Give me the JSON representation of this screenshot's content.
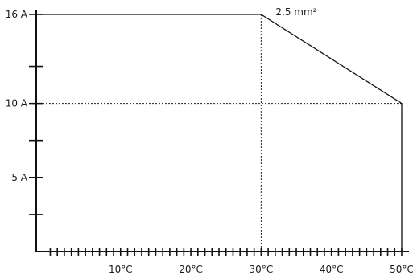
{
  "chart_data": {
    "type": "line",
    "title": "",
    "xlabel": "",
    "ylabel": "",
    "xlim": [
      -2,
      50
    ],
    "ylim": [
      0,
      16
    ],
    "x_ticks": [
      {
        "value": 10,
        "label": "10°C"
      },
      {
        "value": 20,
        "label": "20°C"
      },
      {
        "value": 30,
        "label": "30°C"
      },
      {
        "value": 40,
        "label": "40°C"
      },
      {
        "value": 50,
        "label": "50°C"
      }
    ],
    "x_minor_step": 1,
    "y_ticks": [
      {
        "value": 5,
        "label": "5 A"
      },
      {
        "value": 10,
        "label": "10 A"
      },
      {
        "value": 16,
        "label": "16 A"
      }
    ],
    "y_minor_ticks": [
      2.5,
      7.5,
      12.5
    ],
    "series": [
      {
        "name": "2,5 mm²",
        "x": [
          -2,
          30,
          50,
          50
        ],
        "y": [
          16,
          16,
          10,
          0
        ]
      }
    ],
    "guide_lines": [
      {
        "from": [
          30,
          16
        ],
        "to": [
          30,
          0
        ]
      },
      {
        "from": [
          -2,
          10
        ],
        "to": [
          50,
          10
        ]
      }
    ],
    "grid": false
  }
}
